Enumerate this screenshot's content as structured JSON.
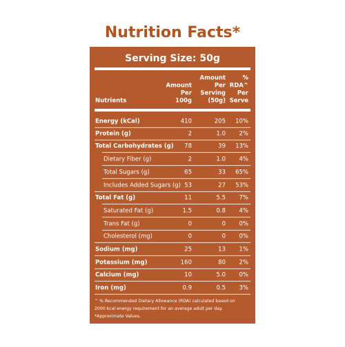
{
  "title": "Nutrition Facts*",
  "serving_size": "Serving Size: 50g",
  "table": {
    "header": [
      [
        "Nutrients"
      ],
      [
        "Amount",
        "Per",
        "100g"
      ],
      [
        "Amount",
        "Per",
        "Serving",
        "(50g)"
      ],
      [
        "%",
        "RDA^",
        "Per",
        "Serve"
      ]
    ],
    "rows": [
      [
        "Energy (kCal)",
        "410",
        "205",
        "10%"
      ],
      [
        "Protein (g)",
        "2",
        "1.0",
        "2%"
      ],
      [
        "Total Carbohydrates (g)",
        "78",
        "39",
        "13%"
      ],
      [
        "Dietary Fiber (g)",
        "2",
        "1.0",
        "4%"
      ],
      [
        "Total Sugars (g)",
        "65",
        "33",
        "65%"
      ],
      [
        "Includes Added Sugars (g)",
        "53",
        "27",
        "53%"
      ],
      [
        "Total Fat (g)",
        "11",
        "5.5",
        "7%"
      ],
      [
        "Saturated Fat (g)",
        "1.5",
        "0.8",
        "4%"
      ],
      [
        "Trans Fat (g)",
        "0",
        "0",
        "0%"
      ],
      [
        "Cholesterol (mg)",
        "0",
        "0",
        "0%"
      ],
      [
        "Sodium (mg)",
        "25",
        "13",
        "1%"
      ],
      [
        "Potassium  (mg)",
        "160",
        "80",
        "2%"
      ],
      [
        "Calcium (mg)",
        "10",
        "5.0",
        "0%"
      ],
      [
        "Iron (mg)",
        "0.9",
        "0.5",
        "3%"
      ]
    ]
  },
  "footnotes": [
    "^ % Recommended Dietary Allowance (RDA) calculated based on",
    "2000 kcal energy requirement for an average adult per day.",
    "*Approximate Values."
  ]
}
